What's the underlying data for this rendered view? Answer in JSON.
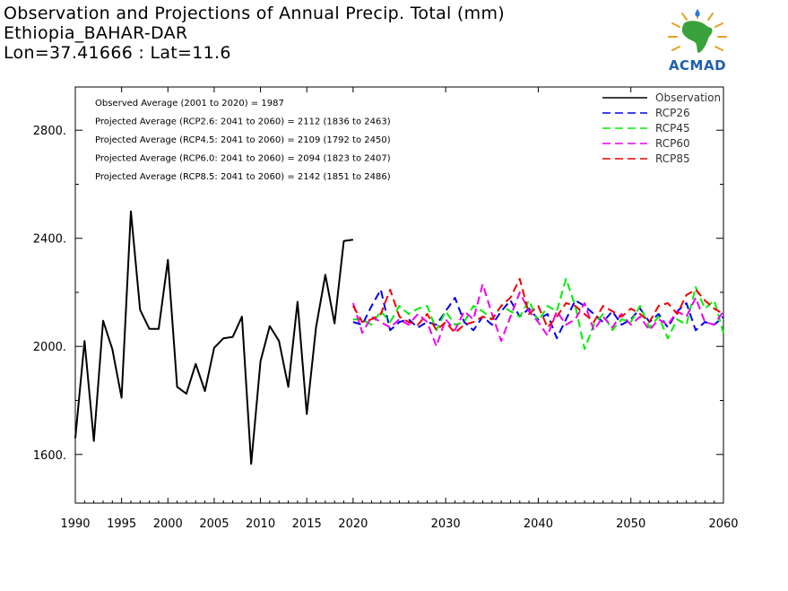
{
  "title_lines": [
    "Observation and Projections of Annual Precip. Total (mm)",
    "Ethiopia_BAHAR-DAR",
    "Lon=37.41666 : Lat=11.6"
  ],
  "logo": {
    "text": "ACMAD",
    "icon": "africa-map-logo-icon"
  },
  "annotations": [
    "Observed Average (2001 to 2020) = 1987",
    "Projected Average (RCP2.6: 2041 to 2060) = 2112 (1836 to 2463)",
    "Projected Average (RCP4.5: 2041 to 2060) = 2109 (1792 to 2450)",
    "Projected Average (RCP6.0: 2041 to 2060) = 2094 (1823 to 2407)",
    "Projected Average (RCP8.5: 2041 to 2060) = 2142 (1851 to 2486)"
  ],
  "chart_data": {
    "type": "line",
    "title": "Observation and Projections of Annual Precip. Total (mm)",
    "xlabel": "",
    "ylabel": "",
    "xlim": [
      1990,
      2060
    ],
    "ylim": [
      1420,
      2960
    ],
    "grid": false,
    "legend_position": "top-right",
    "x_tick_labels": [
      "1990",
      "1995",
      "2000",
      "2005",
      "2010",
      "2015",
      "2020",
      "2030",
      "2040",
      "2050",
      "2060"
    ],
    "y_tick_labels": [
      "1600.",
      "2000.",
      "2400.",
      "2800."
    ],
    "y_ticks": [
      1600,
      2000,
      2400,
      2800
    ],
    "series": [
      {
        "name": "Observation",
        "color": "#000000",
        "dash": "solid",
        "x": [
          1990,
          1991,
          1992,
          1993,
          1994,
          1995,
          1996,
          1997,
          1998,
          1999,
          2000,
          2001,
          2002,
          2003,
          2004,
          2005,
          2006,
          2007,
          2008,
          2009,
          2010,
          2011,
          2012,
          2013,
          2014,
          2015,
          2016,
          2017,
          2018,
          2019,
          2020
        ],
        "y": [
          1660,
          2020,
          1650,
          2095,
          1990,
          1810,
          2500,
          2135,
          2065,
          2065,
          2320,
          1850,
          1825,
          1935,
          1835,
          1995,
          2030,
          2035,
          2110,
          1565,
          1945,
          2075,
          2020,
          1850,
          2165,
          1750,
          2070,
          2265,
          2085,
          2390,
          2395
        ]
      },
      {
        "name": "RCP26",
        "color": "#0000ee",
        "dash": "dashed",
        "x": [
          2020,
          2021,
          2022,
          2023,
          2024,
          2025,
          2026,
          2027,
          2028,
          2029,
          2030,
          2031,
          2032,
          2033,
          2034,
          2035,
          2036,
          2037,
          2038,
          2039,
          2040,
          2041,
          2042,
          2043,
          2044,
          2045,
          2046,
          2047,
          2048,
          2049,
          2050,
          2051,
          2052,
          2053,
          2054,
          2055,
          2056,
          2057,
          2058,
          2059,
          2060
        ],
        "y": [
          2090,
          2080,
          2150,
          2210,
          2060,
          2090,
          2100,
          2070,
          2090,
          2080,
          2130,
          2180,
          2090,
          2060,
          2110,
          2080,
          2130,
          2170,
          2110,
          2140,
          2100,
          2120,
          2030,
          2100,
          2170,
          2150,
          2120,
          2090,
          2130,
          2080,
          2100,
          2140,
          2090,
          2120,
          2070,
          2130,
          2160,
          2060,
          2090,
          2080,
          2110
        ]
      },
      {
        "name": "RCP45",
        "color": "#00ee00",
        "dash": "dashed",
        "x": [
          2020,
          2021,
          2022,
          2023,
          2024,
          2025,
          2026,
          2027,
          2028,
          2029,
          2030,
          2031,
          2032,
          2033,
          2034,
          2035,
          2036,
          2037,
          2038,
          2039,
          2040,
          2041,
          2042,
          2043,
          2044,
          2045,
          2046,
          2047,
          2048,
          2049,
          2050,
          2051,
          2052,
          2053,
          2054,
          2055,
          2056,
          2057,
          2058,
          2059,
          2060
        ],
        "y": [
          2100,
          2100,
          2080,
          2130,
          2090,
          2150,
          2120,
          2140,
          2150,
          2060,
          2130,
          2080,
          2090,
          2150,
          2130,
          2100,
          2150,
          2130,
          2110,
          2170,
          2090,
          2150,
          2130,
          2250,
          2150,
          1990,
          2080,
          2120,
          2060,
          2100,
          2090,
          2150,
          2070,
          2110,
          2030,
          2100,
          2080,
          2220,
          2140,
          2170,
          2050
        ]
      },
      {
        "name": "RCP60",
        "color": "#ee00ee",
        "dash": "dashed",
        "x": [
          2020,
          2021,
          2022,
          2023,
          2024,
          2025,
          2026,
          2027,
          2028,
          2029,
          2030,
          2031,
          2032,
          2033,
          2034,
          2035,
          2036,
          2037,
          2038,
          2039,
          2040,
          2041,
          2042,
          2043,
          2044,
          2045,
          2046,
          2047,
          2048,
          2049,
          2050,
          2051,
          2052,
          2053,
          2054,
          2055,
          2056,
          2057,
          2058,
          2059,
          2060
        ],
        "y": [
          2160,
          2050,
          2110,
          2090,
          2070,
          2100,
          2080,
          2120,
          2090,
          2000,
          2100,
          2060,
          2130,
          2100,
          2230,
          2120,
          2020,
          2110,
          2200,
          2130,
          2090,
          2040,
          2130,
          2080,
          2100,
          2160,
          2060,
          2110,
          2070,
          2120,
          2080,
          2110,
          2060,
          2100,
          2080,
          2130,
          2110,
          2180,
          2090,
          2080,
          2130
        ]
      },
      {
        "name": "RCP85",
        "color": "#ee0000",
        "dash": "dashed",
        "x": [
          2020,
          2021,
          2022,
          2023,
          2024,
          2025,
          2026,
          2027,
          2028,
          2029,
          2030,
          2031,
          2032,
          2033,
          2034,
          2035,
          2036,
          2037,
          2038,
          2039,
          2040,
          2041,
          2042,
          2043,
          2044,
          2045,
          2046,
          2047,
          2048,
          2049,
          2050,
          2051,
          2052,
          2053,
          2054,
          2055,
          2056,
          2057,
          2058,
          2059,
          2060
        ],
        "y": [
          2150,
          2090,
          2100,
          2120,
          2210,
          2110,
          2090,
          2080,
          2120,
          2060,
          2090,
          2050,
          2080,
          2090,
          2110,
          2100,
          2150,
          2180,
          2250,
          2120,
          2150,
          2070,
          2110,
          2160,
          2150,
          2120,
          2090,
          2150,
          2130,
          2110,
          2140,
          2120,
          2090,
          2150,
          2160,
          2120,
          2190,
          2210,
          2170,
          2140,
          2120
        ]
      }
    ]
  }
}
